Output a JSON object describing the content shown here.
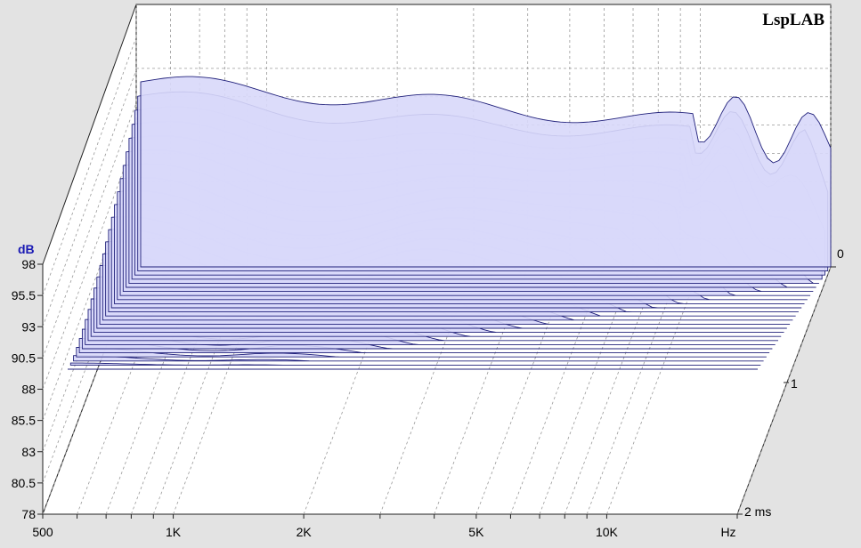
{
  "chart_data": {
    "type": "waterfall-3d",
    "brand": "LspLAB",
    "ylabel": "dB",
    "xlabel": "Hz",
    "zlabel": "ms",
    "y_ticks": [
      "98",
      "95.5",
      "93",
      "90.5",
      "88",
      "85.5",
      "83",
      "80.5",
      "78"
    ],
    "x_ticks": [
      "500",
      "1K",
      "2K",
      "5K",
      "10K"
    ],
    "x_unit": "Hz",
    "z_ticks": [
      "0",
      "1",
      "2 ms"
    ],
    "xlim": [
      500,
      20000
    ],
    "ylim": [
      78,
      98
    ],
    "zlim": [
      0,
      2
    ],
    "x_scale": "log",
    "grid": true,
    "colors": {
      "fill": "#d8d8fa",
      "line": "#20207a",
      "background": "#e3e3e3",
      "floor": "#ffffff"
    }
  }
}
